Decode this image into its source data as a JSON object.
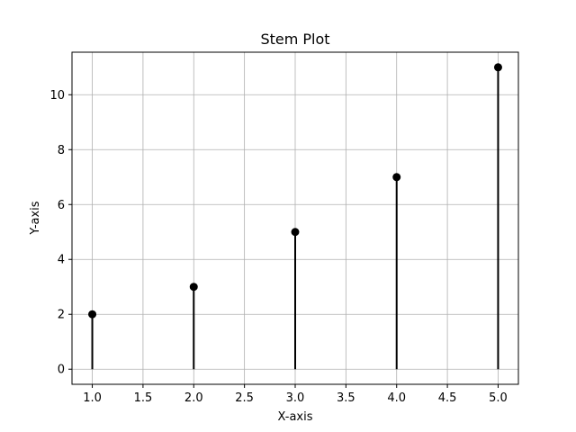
{
  "chart_data": {
    "type": "stem",
    "title": "Stem Plot",
    "xlabel": "X-axis",
    "ylabel": "Y-axis",
    "x": [
      1,
      2,
      3,
      4,
      5
    ],
    "y": [
      2,
      3,
      5,
      7,
      11
    ],
    "xlim": [
      0.8,
      5.2
    ],
    "ylim": [
      -0.55,
      11.55
    ],
    "xticks": [
      1.0,
      1.5,
      2.0,
      2.5,
      3.0,
      3.5,
      4.0,
      4.5,
      5.0
    ],
    "xtick_labels": [
      "1.0",
      "1.5",
      "2.0",
      "2.5",
      "3.0",
      "3.5",
      "4.0",
      "4.5",
      "5.0"
    ],
    "yticks": [
      0,
      2,
      4,
      6,
      8,
      10
    ],
    "ytick_labels": [
      "0",
      "2",
      "4",
      "6",
      "8",
      "10"
    ],
    "grid": true,
    "stem_color": "#000000",
    "marker_color": "#000000",
    "grid_color": "#b0b0b0"
  }
}
